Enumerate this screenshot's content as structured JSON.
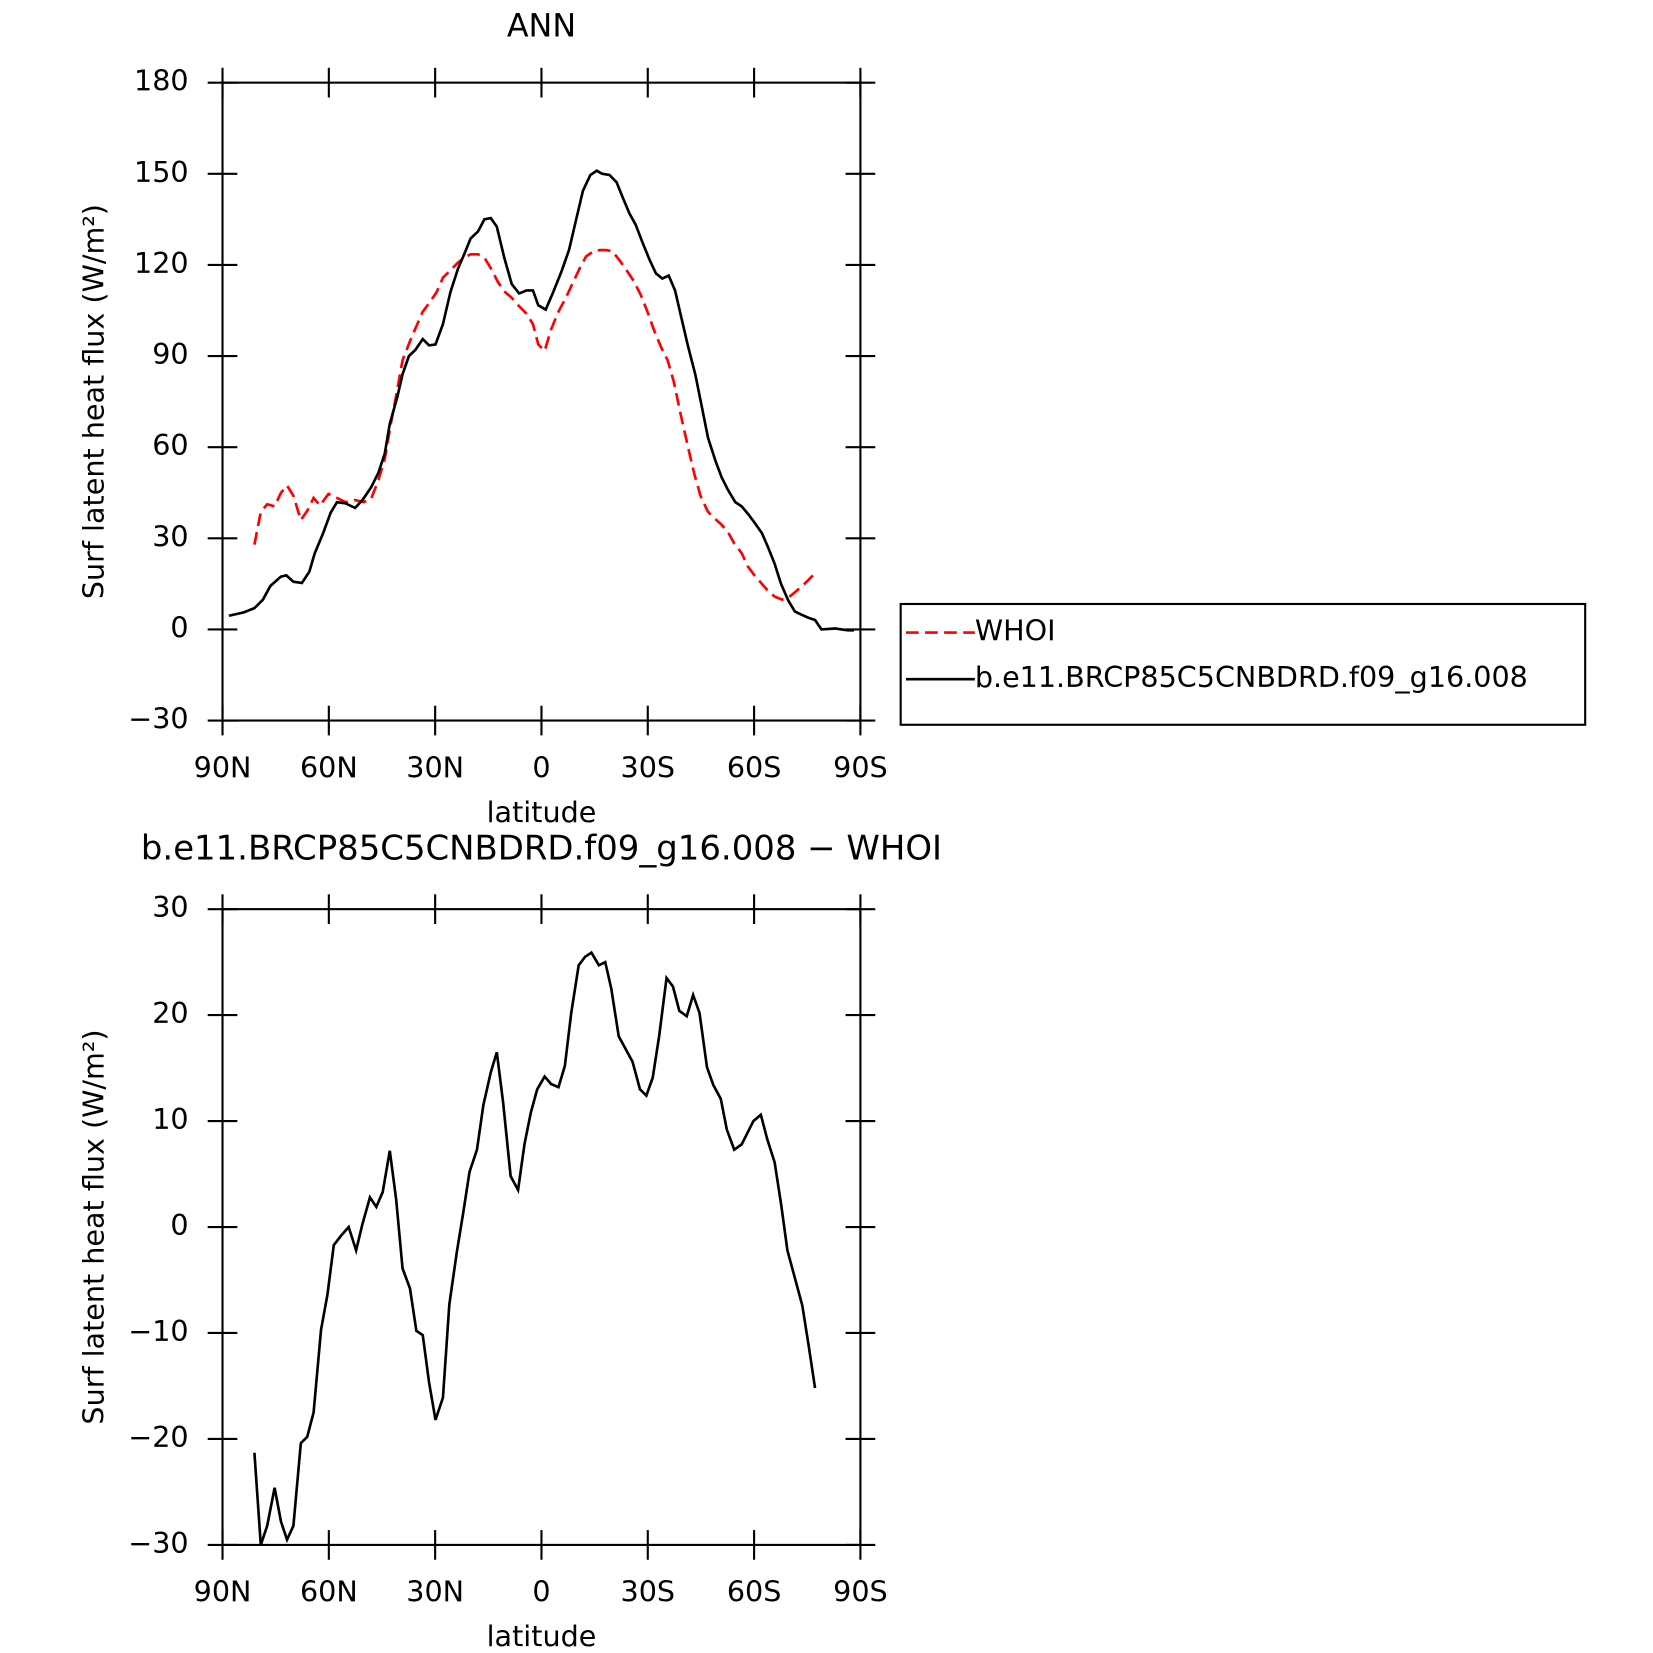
{
  "chart_data": [
    {
      "type": "line",
      "title": "ANN",
      "ylabel": "Surf latent heat flux (W/m²)",
      "xlabel": "latitude",
      "xlim": [
        90,
        -90
      ],
      "xticks": [
        {
          "value": 90,
          "label": "90N"
        },
        {
          "value": 60,
          "label": "60N"
        },
        {
          "value": 30,
          "label": "30N"
        },
        0,
        {
          "value": -30,
          "label": "30S"
        },
        {
          "value": -60,
          "label": "60S"
        },
        {
          "value": -90,
          "label": "90S"
        }
      ],
      "ylim": [
        -30,
        180
      ],
      "yticks": [
        {
          "value": -30,
          "label": "−30"
        },
        0,
        30,
        60,
        90,
        120,
        150,
        180
      ],
      "legend": "right",
      "series": [
        {
          "name": "WHOI",
          "color": "#ff0000",
          "line_style": "dashed",
          "x": [
            81,
            79.2,
            77.4,
            75.3,
            73.5,
            71.8,
            70,
            67.9,
            66.1,
            64.3,
            62.5,
            60.1,
            57.7,
            55.3,
            52.6,
            50.2,
            48.1,
            46,
            44.2,
            42.5,
            40.7,
            39.2,
            37.1,
            35.3,
            33.5,
            31.7,
            29.6,
            27.8,
            25.7,
            23.6,
            21.8,
            20,
            17.9,
            16.1,
            14.3,
            12.3,
            10.5,
            8.4,
            6.3,
            4.2,
            2.4,
            0.9,
            -0.9,
            -2.7,
            -4.8,
            -6.9,
            -8.7,
            -10.8,
            -12.6,
            -14.7,
            -16.5,
            -18.3,
            -20,
            -22.1,
            -24.2,
            -26,
            -28.1,
            -29.9,
            -31.7,
            -33.8,
            -35.6,
            -37.4,
            -39.2,
            -41.3,
            -43.1,
            -44.9,
            -47,
            -48.8,
            -50.8,
            -52.6,
            -54.4,
            -56.5,
            -58.3,
            -60.1,
            -62.2,
            -64,
            -65.8,
            -67.9,
            -69.7,
            -71.5,
            -73.3,
            -75.1,
            -77.2
          ],
          "values": [
            27.9,
            38.7,
            41.2,
            40.5,
            45,
            47.4,
            44,
            36,
            39,
            43.3,
            40.8,
            44.6,
            43.3,
            41.9,
            42.6,
            41.9,
            42.9,
            49.2,
            56.2,
            67.7,
            78.8,
            88.6,
            94.9,
            99.8,
            104.6,
            107.4,
            111,
            115.8,
            118.2,
            120.7,
            122.4,
            123.5,
            123.5,
            122.4,
            118.9,
            114.4,
            111.3,
            109.2,
            106.4,
            103.9,
            100.5,
            93.8,
            91.7,
            98.7,
            104.6,
            109.2,
            113.7,
            118.9,
            122.8,
            124.5,
            124.9,
            124.9,
            124.5,
            121.4,
            117.9,
            114.8,
            109.9,
            104.6,
            98.7,
            92.8,
            88.6,
            81.3,
            71.2,
            60.3,
            51.3,
            43.9,
            38.7,
            36.6,
            34.5,
            32.1,
            28.3,
            25.1,
            20.6,
            17.8,
            15,
            12.6,
            10.8,
            9.8,
            10.5,
            12.2,
            14,
            16,
            18.5
          ]
        },
        {
          "name": "b.e11.BRCP85C5CNBDRD.f09_g16.008",
          "color": "#000000",
          "line_style": "solid",
          "x": [
            88.2,
            84,
            81,
            78.6,
            76.5,
            73.5,
            72,
            70,
            67.6,
            65.5,
            64,
            61.6,
            59.5,
            57.7,
            55.3,
            52.6,
            50.5,
            48.1,
            46,
            44.2,
            42.8,
            40.7,
            39.2,
            37.4,
            35.6,
            33.5,
            31.7,
            29.9,
            27.8,
            25.7,
            23.6,
            21.8,
            20,
            17.9,
            16.1,
            14.3,
            12.6,
            10.5,
            8.4,
            6.3,
            4.2,
            2.4,
            0.9,
            -1.2,
            -3.3,
            -5.7,
            -7.8,
            -9.6,
            -11.7,
            -13.8,
            -15.6,
            -17.1,
            -19.2,
            -21.2,
            -23,
            -24.8,
            -26.6,
            -28.4,
            -30.5,
            -32.3,
            -34.1,
            -35.9,
            -37.7,
            -39.5,
            -41.3,
            -43.4,
            -45.2,
            -47,
            -49.1,
            -50.8,
            -52.6,
            -54.7,
            -56.5,
            -58.3,
            -60.1,
            -62.2,
            -64,
            -65.8,
            -67.6,
            -69.7,
            -71.5,
            -73.3,
            -75.4,
            -77.2,
            -79,
            -82.8,
            -86.4,
            -88.2
          ],
          "values": [
            4.5,
            5.6,
            7,
            9.8,
            14.3,
            17.4,
            17.8,
            15.7,
            15.3,
            19,
            25,
            31.7,
            38.4,
            41.9,
            41.5,
            40,
            42.6,
            46.7,
            51.6,
            58,
            67.7,
            76.4,
            84,
            90,
            92,
            95.6,
            93.5,
            93.8,
            100.5,
            111,
            118.6,
            123.5,
            128.7,
            131,
            135,
            135.4,
            132.6,
            122.4,
            113.7,
            110.6,
            111.6,
            111.6,
            106.7,
            105.3,
            111,
            118,
            125,
            134,
            144.4,
            149.6,
            151,
            150,
            149.6,
            147.2,
            142,
            137,
            133.2,
            127.7,
            121.7,
            117.2,
            115.5,
            116.5,
            111.6,
            102.5,
            93.5,
            84,
            73.6,
            63.1,
            55.5,
            50.2,
            46,
            41.9,
            40.5,
            38,
            35.2,
            31.7,
            26.9,
            21.6,
            15,
            9.4,
            5.9,
            4.9,
            3.8,
            3.1,
            0,
            0.3,
            -0.3,
            -0.3
          ]
        }
      ]
    },
    {
      "type": "line",
      "title": "b.e11.BRCP85C5CNBDRD.f09_g16.008 − WHOI",
      "ylabel": "Surf latent heat flux (W/m²)",
      "xlabel": "latitude",
      "xlim": [
        90,
        -90
      ],
      "xticks": [
        {
          "value": 90,
          "label": "90N"
        },
        {
          "value": 60,
          "label": "60N"
        },
        {
          "value": 30,
          "label": "30N"
        },
        0,
        {
          "value": -30,
          "label": "30S"
        },
        {
          "value": -60,
          "label": "60S"
        },
        {
          "value": -90,
          "label": "90S"
        }
      ],
      "ylim": [
        -30,
        30
      ],
      "yticks": [
        {
          "value": -30,
          "label": "−30"
        },
        {
          "value": -20,
          "label": "−20"
        },
        {
          "value": -10,
          "label": "−10"
        },
        0,
        10,
        20,
        30
      ],
      "color": "#000000",
      "x": [
        81,
        79.2,
        77.4,
        75.3,
        73.5,
        71.8,
        70,
        67.9,
        66.1,
        64.3,
        62.2,
        60.4,
        58.6,
        56.5,
        54.4,
        52.3,
        50.5,
        48.4,
        46.6,
        44.8,
        42.8,
        41,
        39.2,
        37.1,
        35.3,
        33.5,
        31.7,
        29.9,
        27.8,
        26,
        23.9,
        22.1,
        20.3,
        18.2,
        16.4,
        14.3,
        12.6,
        10.8,
        8.7,
        6.6,
        4.8,
        3,
        1.2,
        -0.9,
        -2.7,
        -4.8,
        -6.6,
        -8.4,
        -10.5,
        -12.3,
        -14.1,
        -16.2,
        -18,
        -19.7,
        -21.8,
        -23.6,
        -25.7,
        -27.8,
        -29.6,
        -31.4,
        -33.2,
        -35.3,
        -37.1,
        -38.9,
        -41,
        -42.8,
        -44.6,
        -46.7,
        -48.5,
        -50.6,
        -52.3,
        -54.4,
        -56.5,
        -58.3,
        -59.8,
        -61.9,
        -63.7,
        -65.8,
        -67.6,
        -69.4,
        -71.5,
        -73.6,
        -75.4,
        -77.2
      ],
      "values": [
        -21.3,
        -30,
        -28.2,
        -24.6,
        -27.8,
        -29.5,
        -28.2,
        -20.4,
        -19.8,
        -17.5,
        -9.7,
        -6.4,
        -1.7,
        -0.8,
        0,
        -2.2,
        0.3,
        2.8,
        1.9,
        3.3,
        7.2,
        2.6,
        -3.9,
        -5.8,
        -9.8,
        -10.2,
        -14.7,
        -18.2,
        -16.1,
        -7.3,
        -2.4,
        1.3,
        5.2,
        7.3,
        11.5,
        14.6,
        16.5,
        11.7,
        4.8,
        3.5,
        7.8,
        10.8,
        13,
        14.2,
        13.5,
        13.2,
        15.2,
        20.2,
        24.7,
        25.5,
        25.9,
        24.7,
        25,
        22.5,
        18,
        16.9,
        15.6,
        13,
        12.4,
        14.1,
        18,
        23.5,
        22.7,
        20.4,
        19.9,
        21.9,
        20.2,
        15.1,
        13.4,
        12.1,
        9.2,
        7.3,
        7.8,
        9,
        10,
        10.6,
        8.3,
        6.1,
        2.2,
        -2.2,
        -4.8,
        -7.4,
        -11.2,
        -15.2
      ]
    }
  ]
}
